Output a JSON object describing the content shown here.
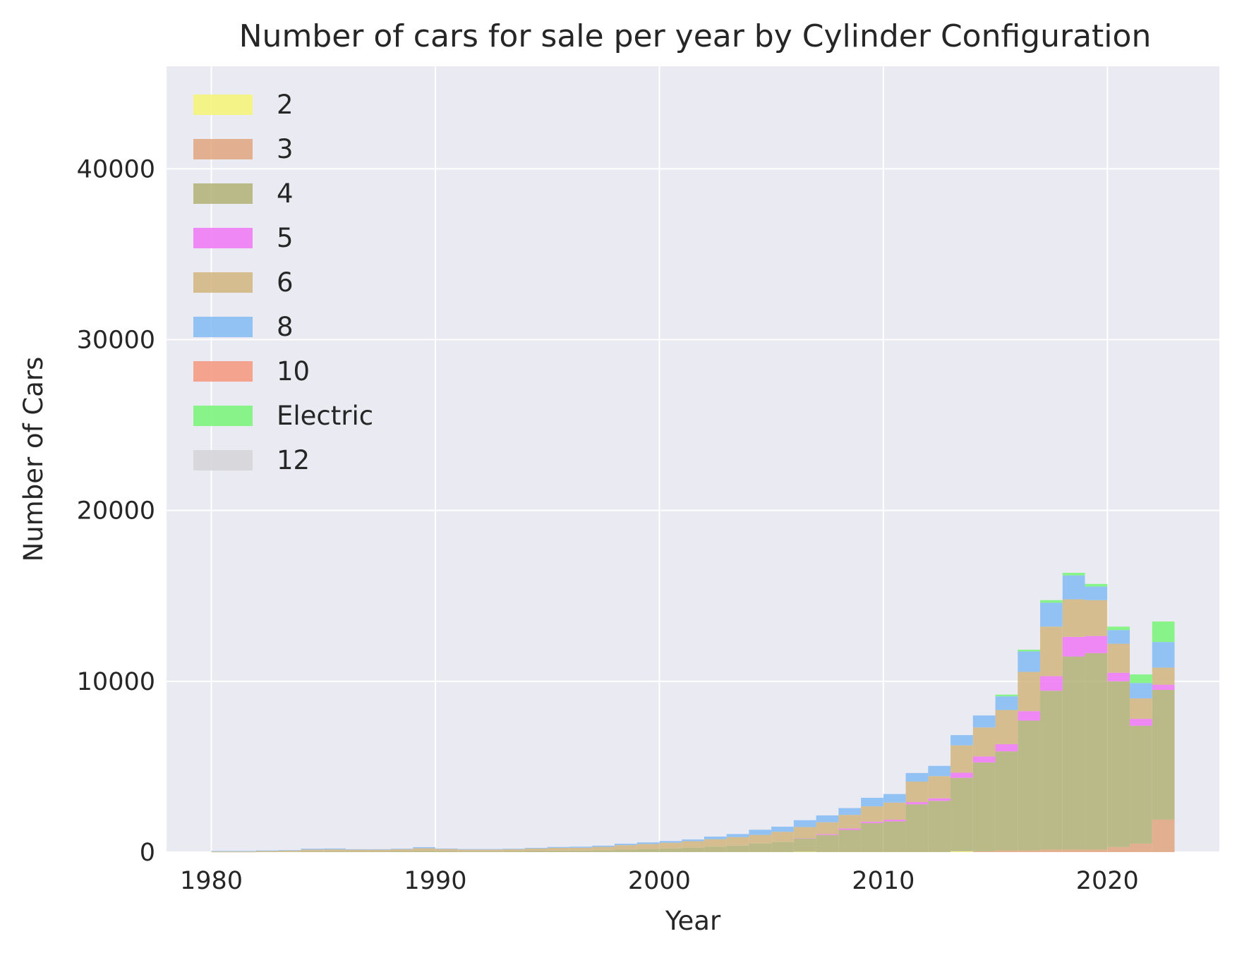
{
  "chart_data": {
    "type": "bar",
    "histogram": true,
    "stacked": true,
    "title": "Number of cars for sale per year by Cylinder Configuration",
    "xlabel": "Year",
    "ylabel": "Number of Cars",
    "xlim": [
      1978,
      2025
    ],
    "ylim": [
      0,
      46000
    ],
    "xticks": [
      "1980",
      "1990",
      "2000",
      "2010",
      "2020"
    ],
    "yticks": [
      "0",
      "10000",
      "20000",
      "30000",
      "40000"
    ],
    "grid": true,
    "legend_position": "upper-left",
    "bins": [
      1980,
      1981,
      1982,
      1983,
      1984,
      1985,
      1986,
      1987,
      1988,
      1989,
      1990,
      1991,
      1992,
      1993,
      1994,
      1995,
      1996,
      1997,
      1998,
      1999,
      2000,
      2001,
      2002,
      2003,
      2004,
      2005,
      2006,
      2007,
      2008,
      2009,
      2010,
      2011,
      2012,
      2013,
      2014,
      2015,
      2016,
      2017,
      2018,
      2019,
      2020,
      2021,
      2022
    ],
    "bin_width": 1,
    "series": [
      {
        "name": "2",
        "color": "#f5f575",
        "values": [
          0,
          0,
          0,
          0,
          0,
          0,
          0,
          0,
          0,
          0,
          0,
          0,
          0,
          0,
          0,
          0,
          0,
          0,
          0,
          0,
          0,
          0,
          0,
          0,
          0,
          0,
          20,
          0,
          0,
          0,
          0,
          0,
          0,
          50,
          0,
          0,
          0,
          0,
          0,
          0,
          0,
          0,
          0
        ]
      },
      {
        "name": "3",
        "color": "#e1a67f",
        "values": [
          0,
          0,
          0,
          0,
          0,
          0,
          0,
          0,
          0,
          0,
          0,
          0,
          0,
          0,
          0,
          0,
          0,
          0,
          0,
          0,
          0,
          0,
          0,
          0,
          0,
          0,
          0,
          0,
          0,
          0,
          0,
          0,
          0,
          0,
          50,
          100,
          100,
          150,
          150,
          150,
          300,
          500,
          1900
        ]
      },
      {
        "name": "4",
        "color": "#b1b177",
        "values": [
          10,
          10,
          20,
          30,
          50,
          50,
          40,
          40,
          60,
          80,
          60,
          50,
          50,
          60,
          80,
          90,
          90,
          110,
          150,
          180,
          210,
          260,
          320,
          380,
          510,
          590,
          780,
          1000,
          1300,
          1700,
          1800,
          2800,
          3000,
          4300,
          5200,
          5800,
          7600,
          9300,
          11300,
          11500,
          9700,
          6900,
          7600
        ]
      },
      {
        "name": "5",
        "color": "#f075f5",
        "values": [
          0,
          0,
          0,
          0,
          0,
          0,
          0,
          0,
          0,
          0,
          0,
          0,
          0,
          0,
          0,
          0,
          0,
          0,
          0,
          0,
          0,
          0,
          0,
          0,
          0,
          0,
          20,
          50,
          80,
          80,
          100,
          130,
          150,
          300,
          350,
          420,
          550,
          850,
          1150,
          1000,
          500,
          400,
          300
        ]
      },
      {
        "name": "6",
        "color": "#d2b57f",
        "values": [
          30,
          30,
          50,
          60,
          100,
          110,
          100,
          100,
          110,
          150,
          120,
          100,
          100,
          110,
          130,
          160,
          170,
          200,
          260,
          300,
          340,
          380,
          440,
          500,
          500,
          600,
          650,
          700,
          800,
          900,
          1000,
          1200,
          1300,
          1600,
          1700,
          2000,
          2300,
          2900,
          2200,
          2100,
          1700,
          1200,
          1000
        ]
      },
      {
        "name": "8",
        "color": "#82bbf5",
        "values": [
          30,
          30,
          30,
          30,
          50,
          50,
          30,
          30,
          30,
          60,
          30,
          30,
          30,
          30,
          40,
          50,
          60,
          70,
          80,
          90,
          100,
          100,
          150,
          180,
          300,
          300,
          400,
          400,
          400,
          500,
          500,
          500,
          600,
          600,
          700,
          800,
          1200,
          1400,
          1400,
          800,
          800,
          900,
          1500
        ]
      },
      {
        "name": "10",
        "color": "#f5977c",
        "values": [
          0,
          0,
          0,
          0,
          0,
          0,
          0,
          0,
          0,
          0,
          0,
          0,
          0,
          0,
          0,
          0,
          0,
          0,
          0,
          0,
          0,
          0,
          0,
          0,
          0,
          0,
          0,
          0,
          0,
          0,
          0,
          0,
          0,
          0,
          0,
          0,
          0,
          0,
          0,
          0,
          0,
          0,
          0
        ]
      },
      {
        "name": "Electric",
        "color": "#75f575",
        "values": [
          0,
          0,
          0,
          0,
          0,
          0,
          0,
          0,
          0,
          0,
          0,
          0,
          0,
          0,
          0,
          0,
          0,
          0,
          0,
          0,
          0,
          0,
          0,
          0,
          0,
          0,
          0,
          0,
          0,
          0,
          0,
          0,
          0,
          0,
          0,
          100,
          100,
          150,
          150,
          150,
          200,
          500,
          1200
        ]
      },
      {
        "name": "12",
        "color": "#d3d3d8",
        "values": [
          0,
          0,
          0,
          0,
          0,
          0,
          0,
          0,
          0,
          0,
          0,
          0,
          0,
          0,
          0,
          0,
          0,
          0,
          0,
          0,
          0,
          0,
          0,
          0,
          0,
          0,
          0,
          0,
          0,
          0,
          0,
          0,
          0,
          0,
          0,
          0,
          0,
          0,
          0,
          0,
          0,
          0,
          0
        ]
      }
    ]
  }
}
